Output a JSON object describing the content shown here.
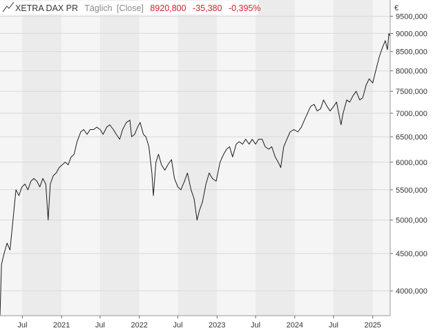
{
  "header": {
    "name": "XETRA DAX PR",
    "interval": "Täglich",
    "mode": "[Close]",
    "last": "8920,800",
    "change": "-35,380",
    "change_pct": "-0,395%"
  },
  "currency": "€",
  "colors": {
    "line": "#1a1a1a",
    "negative": "#d0202a",
    "band_light": "#f5f5f5",
    "band_dark": "#ebebeb",
    "grid": "#d8d8d8",
    "text": "#333333",
    "header_muted": "#8a8a8a"
  },
  "chart_data": {
    "type": "line",
    "title": "XETRA DAX PR",
    "y_scale": "log",
    "xlim": [
      "2020-03-18",
      "2025-03-24"
    ],
    "ylim": [
      3700,
      10000
    ],
    "y_ticks": [
      4000,
      4500,
      5000,
      5500,
      6000,
      6500,
      7000,
      7500,
      8000,
      8500,
      9000,
      9500
    ],
    "y_tick_labels": [
      "4000,000",
      "4500,000",
      "5000,000",
      "5500,000",
      "6000,000",
      "6500,000",
      "7000,000",
      "7500,000",
      "8000,000",
      "8500,000",
      "9000,000",
      "9500,000"
    ],
    "x_ticks": [
      {
        "date": "2020-07-01",
        "label": "Jul"
      },
      {
        "date": "2021-01-01",
        "label": "2021"
      },
      {
        "date": "2021-07-01",
        "label": "Jul"
      },
      {
        "date": "2022-01-01",
        "label": "2022"
      },
      {
        "date": "2022-07-01",
        "label": "Jul"
      },
      {
        "date": "2023-01-01",
        "label": "2023"
      },
      {
        "date": "2023-07-01",
        "label": "Jul"
      },
      {
        "date": "2024-01-01",
        "label": "2024"
      },
      {
        "date": "2024-07-01",
        "label": "Jul"
      },
      {
        "date": "2025-01-01",
        "label": "2025"
      }
    ],
    "grid": true,
    "series": [
      {
        "name": "XETRA DAX PR",
        "points": [
          [
            "2020-03-18",
            3700
          ],
          [
            "2020-03-25",
            4350
          ],
          [
            "2020-04-06",
            4500
          ],
          [
            "2020-04-20",
            4650
          ],
          [
            "2020-05-04",
            4550
          ],
          [
            "2020-05-18",
            5000
          ],
          [
            "2020-06-01",
            5500
          ],
          [
            "2020-06-15",
            5400
          ],
          [
            "2020-06-29",
            5550
          ],
          [
            "2020-07-13",
            5600
          ],
          [
            "2020-07-27",
            5500
          ],
          [
            "2020-08-10",
            5650
          ],
          [
            "2020-08-24",
            5700
          ],
          [
            "2020-09-07",
            5650
          ],
          [
            "2020-09-21",
            5550
          ],
          [
            "2020-10-05",
            5700
          ],
          [
            "2020-10-19",
            5600
          ],
          [
            "2020-10-30",
            5000
          ],
          [
            "2020-11-09",
            5600
          ],
          [
            "2020-11-23",
            5750
          ],
          [
            "2020-12-07",
            5800
          ],
          [
            "2020-12-21",
            5900
          ],
          [
            "2021-01-04",
            5950
          ],
          [
            "2021-01-18",
            6000
          ],
          [
            "2021-02-01",
            5950
          ],
          [
            "2021-02-15",
            6100
          ],
          [
            "2021-03-01",
            6150
          ],
          [
            "2021-03-15",
            6400
          ],
          [
            "2021-04-01",
            6600
          ],
          [
            "2021-04-15",
            6650
          ],
          [
            "2021-05-01",
            6550
          ],
          [
            "2021-05-15",
            6650
          ],
          [
            "2021-06-01",
            6650
          ],
          [
            "2021-06-15",
            6700
          ],
          [
            "2021-07-01",
            6650
          ],
          [
            "2021-07-15",
            6550
          ],
          [
            "2021-08-01",
            6700
          ],
          [
            "2021-08-15",
            6750
          ],
          [
            "2021-09-01",
            6650
          ],
          [
            "2021-09-15",
            6550
          ],
          [
            "2021-10-01",
            6450
          ],
          [
            "2021-10-15",
            6650
          ],
          [
            "2021-11-01",
            6800
          ],
          [
            "2021-11-18",
            6850
          ],
          [
            "2021-11-26",
            6500
          ],
          [
            "2021-12-10",
            6550
          ],
          [
            "2021-12-24",
            6700
          ],
          [
            "2022-01-05",
            6800
          ],
          [
            "2022-01-20",
            6550
          ],
          [
            "2022-02-01",
            6500
          ],
          [
            "2022-02-15",
            6300
          ],
          [
            "2022-03-01",
            5800
          ],
          [
            "2022-03-08",
            5400
          ],
          [
            "2022-03-20",
            6000
          ],
          [
            "2022-04-01",
            6150
          ],
          [
            "2022-04-15",
            5950
          ],
          [
            "2022-05-01",
            5850
          ],
          [
            "2022-05-15",
            5950
          ],
          [
            "2022-06-01",
            6050
          ],
          [
            "2022-06-15",
            5700
          ],
          [
            "2022-07-01",
            5550
          ],
          [
            "2022-07-15",
            5500
          ],
          [
            "2022-08-01",
            5650
          ],
          [
            "2022-08-15",
            5800
          ],
          [
            "2022-09-01",
            5500
          ],
          [
            "2022-09-15",
            5350
          ],
          [
            "2022-09-29",
            5000
          ],
          [
            "2022-10-10",
            5150
          ],
          [
            "2022-10-25",
            5300
          ],
          [
            "2022-11-10",
            5600
          ],
          [
            "2022-11-25",
            5800
          ],
          [
            "2022-12-10",
            5700
          ],
          [
            "2022-12-28",
            5650
          ],
          [
            "2023-01-15",
            6000
          ],
          [
            "2023-02-01",
            6150
          ],
          [
            "2023-02-15",
            6250
          ],
          [
            "2023-03-01",
            6300
          ],
          [
            "2023-03-15",
            6100
          ],
          [
            "2023-04-01",
            6350
          ],
          [
            "2023-04-15",
            6400
          ],
          [
            "2023-05-01",
            6350
          ],
          [
            "2023-05-15",
            6450
          ],
          [
            "2023-06-01",
            6350
          ],
          [
            "2023-06-15",
            6450
          ],
          [
            "2023-07-01",
            6350
          ],
          [
            "2023-07-15",
            6450
          ],
          [
            "2023-08-01",
            6450
          ],
          [
            "2023-08-15",
            6300
          ],
          [
            "2023-09-01",
            6250
          ],
          [
            "2023-09-15",
            6300
          ],
          [
            "2023-10-01",
            6100
          ],
          [
            "2023-10-15",
            6000
          ],
          [
            "2023-10-27",
            5900
          ],
          [
            "2023-11-10",
            6300
          ],
          [
            "2023-11-25",
            6450
          ],
          [
            "2023-12-10",
            6600
          ],
          [
            "2023-12-28",
            6650
          ],
          [
            "2024-01-15",
            6600
          ],
          [
            "2024-02-01",
            6700
          ],
          [
            "2024-02-15",
            6850
          ],
          [
            "2024-03-01",
            7000
          ],
          [
            "2024-03-15",
            7150
          ],
          [
            "2024-04-01",
            7200
          ],
          [
            "2024-04-15",
            7050
          ],
          [
            "2024-05-01",
            7100
          ],
          [
            "2024-05-15",
            7300
          ],
          [
            "2024-06-01",
            7150
          ],
          [
            "2024-06-15",
            7050
          ],
          [
            "2024-07-01",
            7150
          ],
          [
            "2024-07-15",
            7250
          ],
          [
            "2024-08-05",
            6750
          ],
          [
            "2024-08-15",
            7000
          ],
          [
            "2024-09-01",
            7300
          ],
          [
            "2024-09-15",
            7250
          ],
          [
            "2024-10-01",
            7400
          ],
          [
            "2024-10-15",
            7500
          ],
          [
            "2024-11-01",
            7300
          ],
          [
            "2024-11-15",
            7350
          ],
          [
            "2024-12-01",
            7650
          ],
          [
            "2024-12-15",
            7800
          ],
          [
            "2025-01-01",
            7700
          ],
          [
            "2025-01-15",
            8000
          ],
          [
            "2025-01-31",
            8350
          ],
          [
            "2025-02-15",
            8600
          ],
          [
            "2025-03-01",
            8800
          ],
          [
            "2025-03-11",
            8550
          ],
          [
            "2025-03-18",
            9000
          ],
          [
            "2025-03-24",
            8920
          ]
        ]
      }
    ]
  }
}
